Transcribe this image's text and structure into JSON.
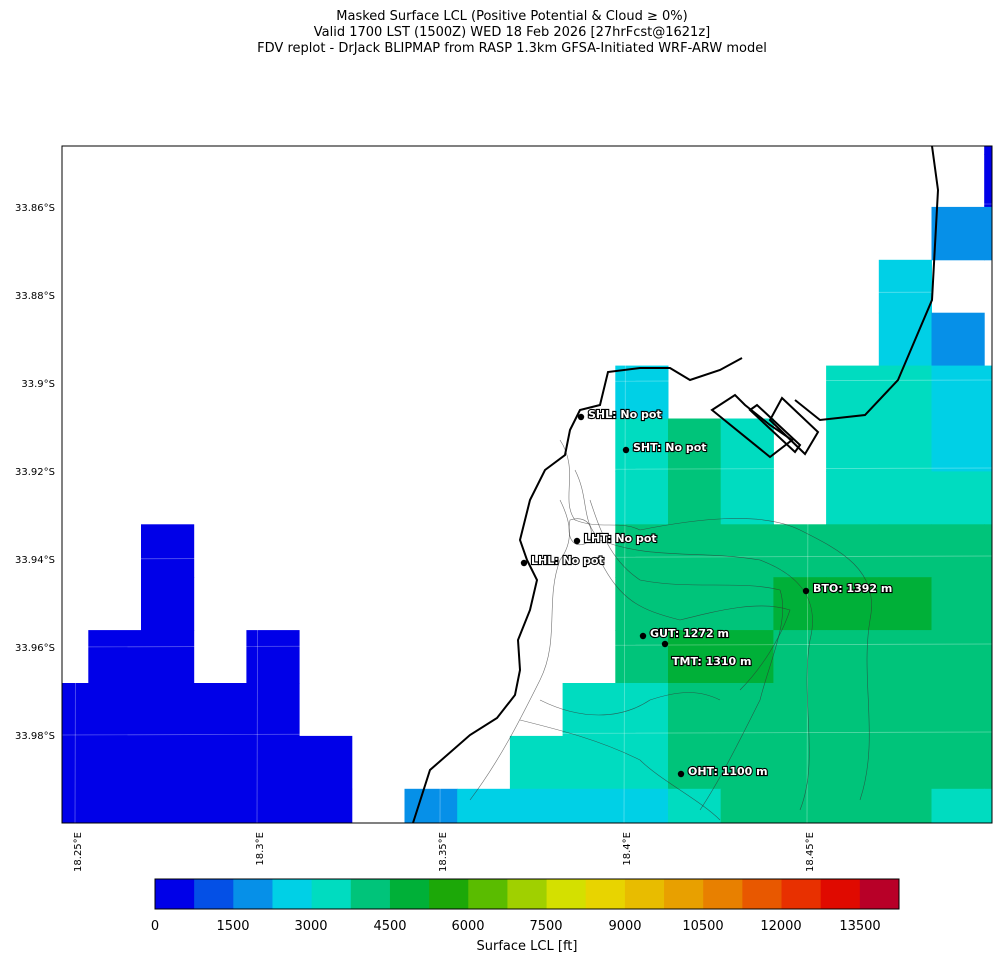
{
  "header": {
    "line1": "Masked Surface LCL (Positive Potential & Cloud ≥ 0%)",
    "line2": "Valid 1700 LST (1500Z) WED 18 Feb 2026 [27hrFcst@1621z]",
    "line3": "FDV replot - DrJack BLIPMAP from RASP 1.3km GFSA-Initiated WRF-ARW model"
  },
  "chart_data": {
    "type": "heatmap",
    "title": "Masked Surface LCL (Positive Potential & Cloud ≥ 0%)",
    "y_ticks": [
      "33.86°S",
      "33.88°S",
      "33.9°S",
      "33.92°S",
      "33.94°S",
      "33.96°S",
      "33.98°S"
    ],
    "x_ticks": [
      "18.25°E",
      "18.3°E",
      "18.35°E",
      "18.4°E",
      "18.45°E"
    ],
    "colorbar": {
      "label": "Surface LCL [ft]",
      "bin_width_ft": 750,
      "tick_labels": [
        "0",
        "1500",
        "3000",
        "4500",
        "6000",
        "7500",
        "9000",
        "10500",
        "12000",
        "13500"
      ],
      "colors": [
        "#0000e8",
        "#0450e6",
        "#0690e8",
        "#00d0e6",
        "#00dcc0",
        "#00c47a",
        "#00b038",
        "#1ca808",
        "#5abc00",
        "#a0d000",
        "#d4e000",
        "#e8d400",
        "#e8bc00",
        "#e8a000",
        "#e88000",
        "#e85800",
        "#e83000",
        "#e00a00",
        "#b80028"
      ]
    },
    "grid_bins_note": "rows north→south, cols west→east; value = colour bin index (750 ft steps), null = masked",
    "grid_bins": [
      [
        null,
        null,
        null,
        null,
        null,
        null,
        null,
        null,
        null,
        null,
        null,
        null,
        null,
        null,
        null,
        null,
        null,
        null,
        0
      ],
      [
        null,
        null,
        null,
        null,
        null,
        null,
        null,
        null,
        null,
        null,
        null,
        null,
        null,
        null,
        null,
        null,
        null,
        null,
        0
      ],
      [
        null,
        null,
        null,
        null,
        null,
        null,
        null,
        null,
        null,
        null,
        null,
        null,
        null,
        null,
        null,
        null,
        null,
        2,
        2
      ],
      [
        null,
        null,
        null,
        null,
        null,
        null,
        null,
        null,
        null,
        null,
        null,
        null,
        null,
        null,
        null,
        null,
        3,
        null,
        null
      ],
      [
        null,
        null,
        null,
        null,
        null,
        null,
        null,
        null,
        null,
        null,
        null,
        null,
        null,
        null,
        null,
        null,
        3,
        2,
        null
      ],
      [
        null,
        null,
        null,
        null,
        null,
        null,
        null,
        null,
        null,
        null,
        null,
        3,
        null,
        null,
        null,
        4,
        4,
        3,
        3
      ],
      [
        null,
        null,
        null,
        null,
        null,
        null,
        null,
        null,
        null,
        null,
        null,
        4,
        5,
        4,
        null,
        4,
        4,
        3,
        3
      ],
      [
        null,
        null,
        null,
        null,
        null,
        null,
        null,
        null,
        null,
        null,
        null,
        4,
        5,
        4,
        null,
        4,
        4,
        4,
        4
      ],
      [
        null,
        null,
        0,
        null,
        null,
        null,
        null,
        null,
        null,
        null,
        null,
        5,
        5,
        5,
        5,
        5,
        5,
        5,
        5
      ],
      [
        null,
        null,
        0,
        null,
        null,
        null,
        null,
        null,
        null,
        null,
        null,
        5,
        5,
        5,
        6,
        6,
        6,
        5,
        5
      ],
      [
        null,
        0,
        0,
        null,
        0,
        null,
        null,
        null,
        null,
        null,
        null,
        5,
        6,
        6,
        5,
        5,
        5,
        5,
        5
      ],
      [
        0,
        0,
        0,
        0,
        0,
        null,
        null,
        null,
        null,
        null,
        4,
        4,
        5,
        5,
        5,
        5,
        5,
        5,
        5
      ],
      [
        0,
        0,
        0,
        0,
        0,
        0,
        null,
        null,
        null,
        4,
        4,
        4,
        5,
        5,
        5,
        5,
        5,
        5,
        5
      ],
      [
        0,
        0,
        0,
        0,
        0,
        0,
        null,
        2,
        3,
        3,
        3,
        3,
        4,
        5,
        5,
        5,
        5,
        4,
        4
      ]
    ],
    "stations": [
      {
        "label": "SHL: No pot"
      },
      {
        "label": "SHT: No pot"
      },
      {
        "label": "LHT: No pot"
      },
      {
        "label": "LHL: No pot"
      },
      {
        "label": "BTO: 1392 m"
      },
      {
        "label": "GUT: 1272 m"
      },
      {
        "label": "TMT: 1310 m"
      },
      {
        "label": "OHT: 1100 m"
      }
    ]
  }
}
